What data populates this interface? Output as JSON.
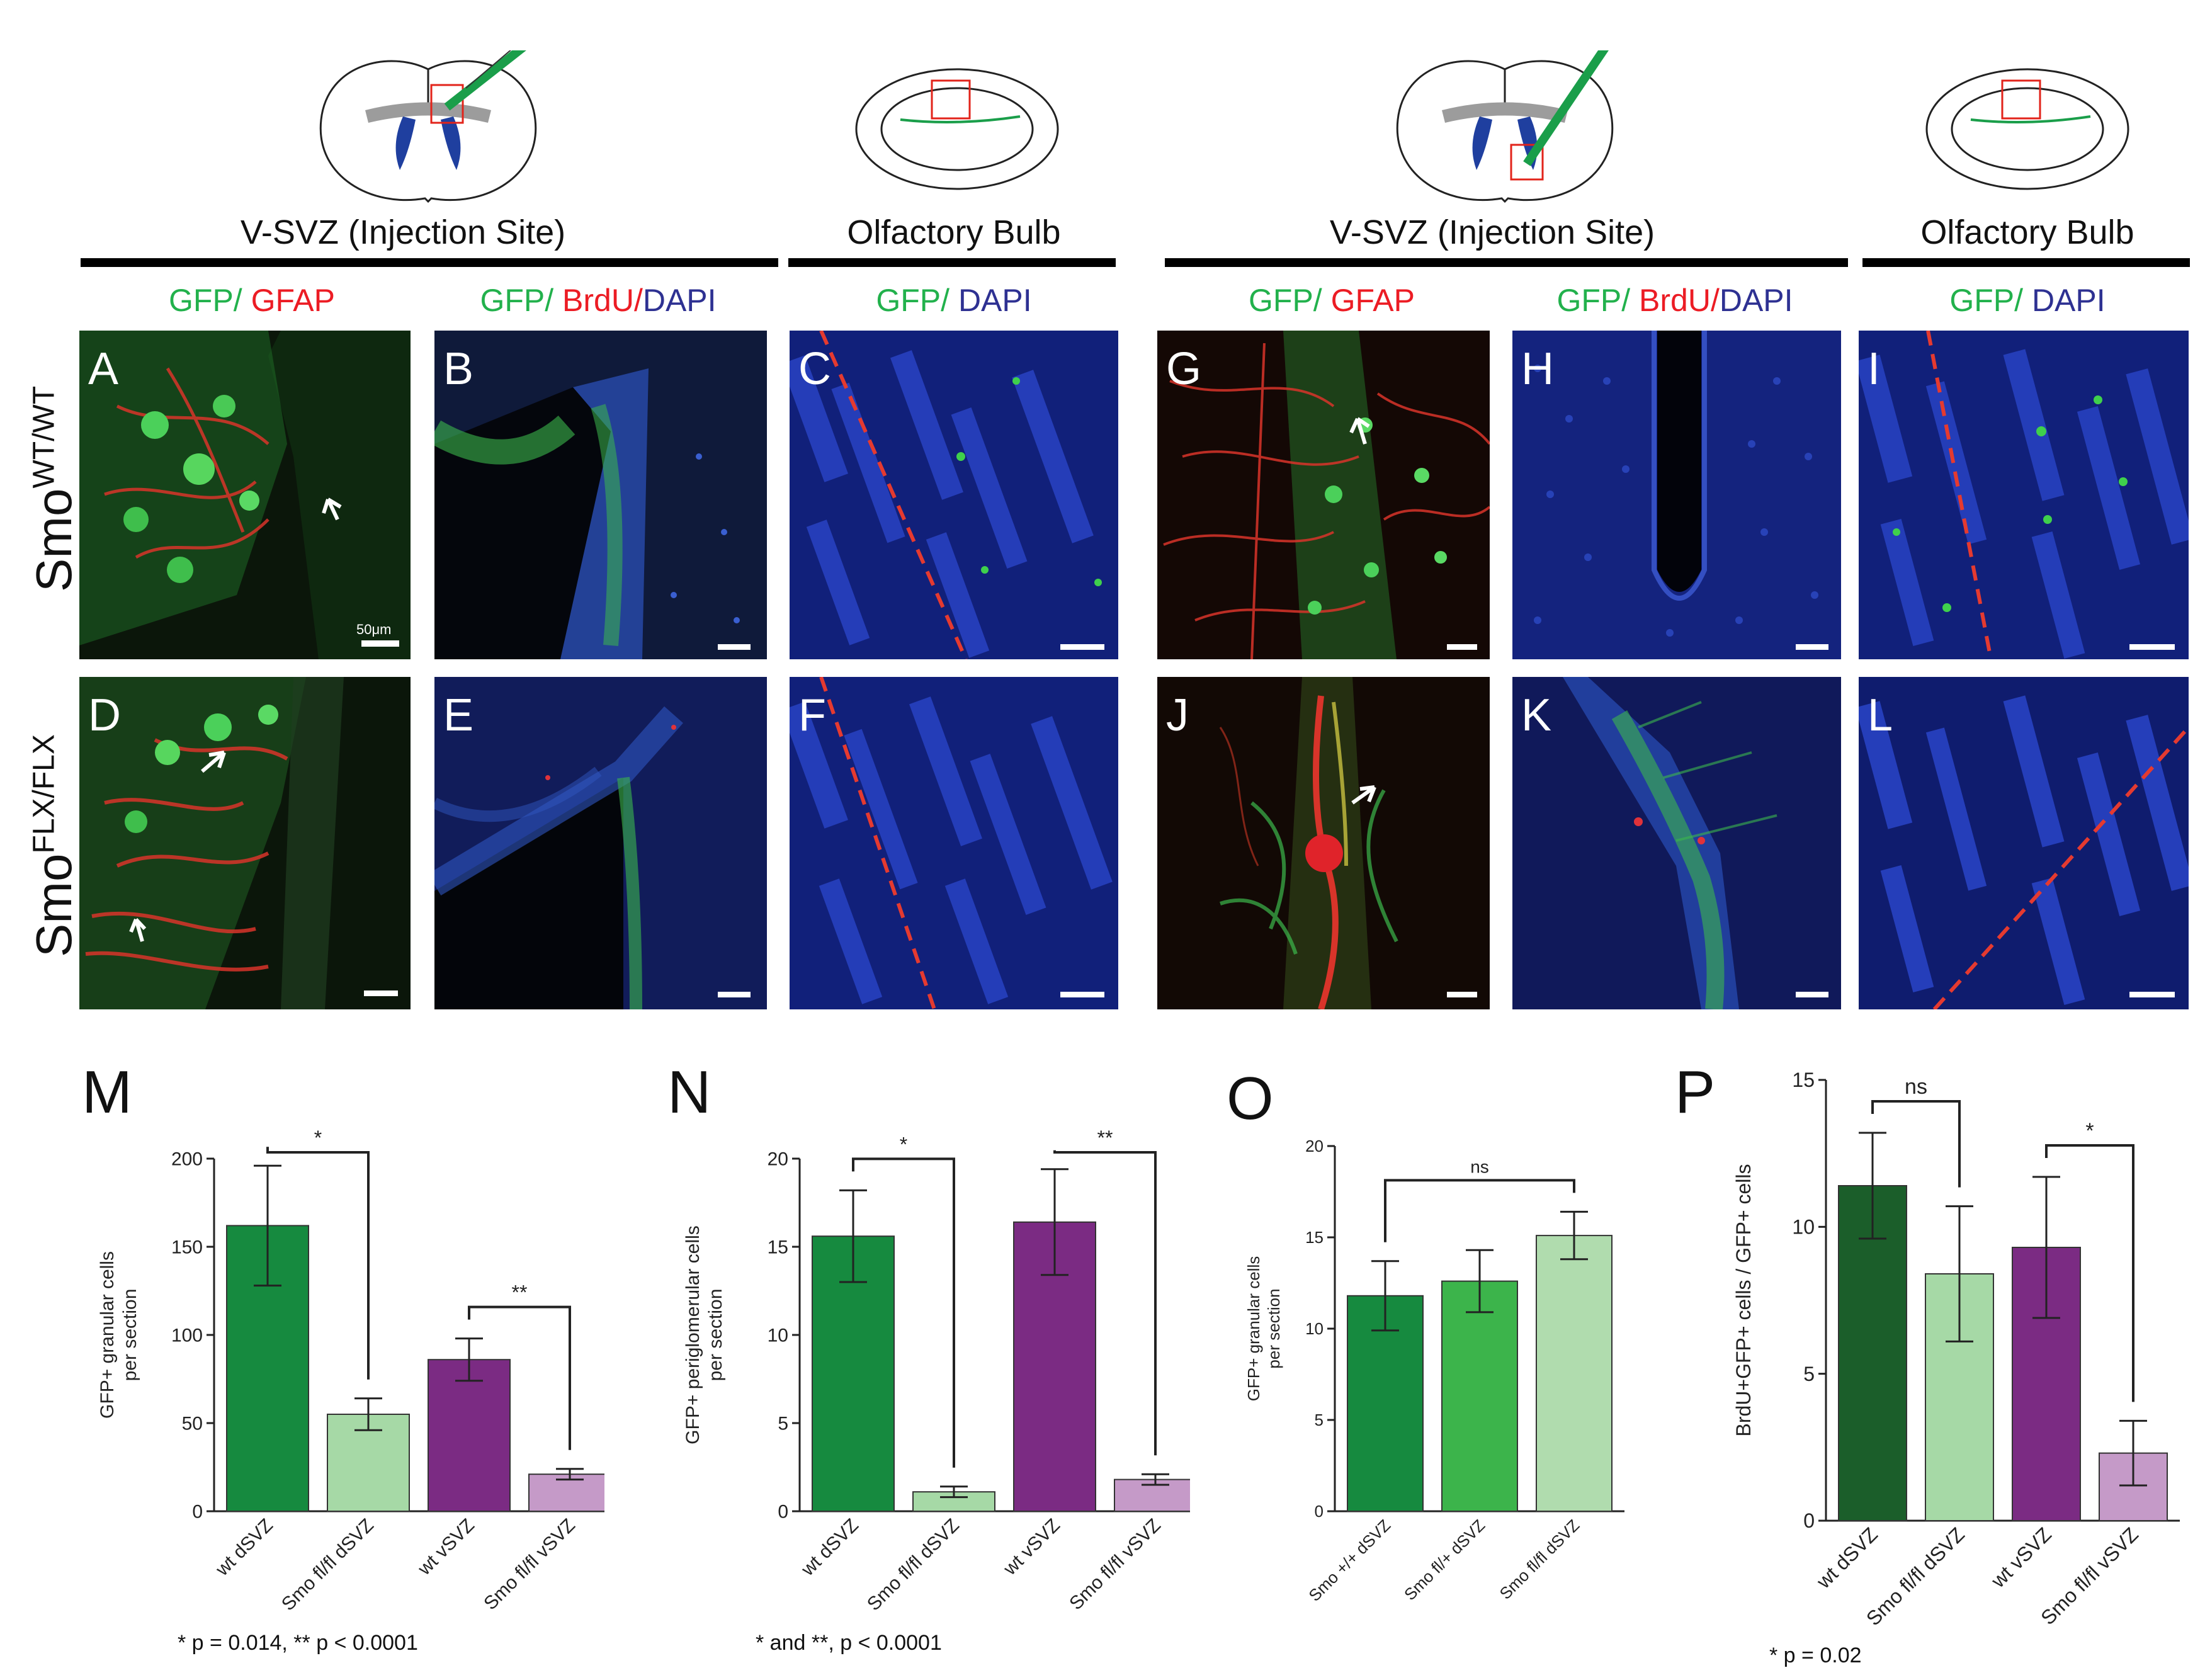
{
  "headers": {
    "left": {
      "vsvz": "V-SVZ (Injection Site)",
      "ob": "Olfactory Bulb"
    },
    "right": {
      "vsvz": "V-SVZ (Injection Site)",
      "ob": "Olfactory Bulb"
    }
  },
  "stains": {
    "gfp_gfap": {
      "gfp": "GFP/",
      "gfap": " GFAP"
    },
    "gfp_brdu_dapi": {
      "gfp": "GFP/",
      "brdu": " BrdU/",
      "dapi": "DAPI"
    },
    "gfp_dapi": {
      "gfp": "GFP/",
      "dapi": " DAPI"
    }
  },
  "rows": {
    "wt": {
      "base": "Smo",
      "sup": "WT/WT"
    },
    "flx": {
      "base": "Smo",
      "sup": "FLX/FLX"
    }
  },
  "panels": {
    "A": "A",
    "B": "B",
    "C": "C",
    "D": "D",
    "E": "E",
    "F": "F",
    "G": "G",
    "H": "H",
    "I": "I",
    "J": "J",
    "K": "K",
    "L": "L"
  },
  "scale_label": "50μm",
  "charts": {
    "M": {
      "letter": "M",
      "chart_data": {
        "type": "bar",
        "categories": [
          "wt dSVZ",
          "Smo fl/fl dSVZ",
          "wt vSVZ",
          "Smo fl/fl vSVZ"
        ],
        "values": [
          162,
          55,
          86,
          21
        ],
        "errors": [
          34,
          9,
          12,
          3
        ],
        "colors": [
          "#168a3f",
          "#a6d9a6",
          "#7b2b83",
          "#c59ac8"
        ],
        "ylabel_lines": [
          "GFP+ granular cells",
          "per section"
        ],
        "ylim": [
          0,
          200
        ],
        "yticks": [
          0,
          50,
          100,
          150,
          200
        ],
        "significance": [
          {
            "from": 0,
            "to": 1,
            "label": "*"
          },
          {
            "from": 2,
            "to": 3,
            "label": "**"
          }
        ]
      },
      "note": "* p = 0.014, ** p < 0.0001"
    },
    "N": {
      "letter": "N",
      "chart_data": {
        "type": "bar",
        "categories": [
          "wt dSVZ",
          "Smo fl/fl dSVZ",
          "wt vSVZ",
          "Smo fl/fl vSVZ"
        ],
        "values": [
          15.6,
          1.1,
          16.4,
          1.8
        ],
        "errors": [
          2.6,
          0.3,
          3.0,
          0.3
        ],
        "colors": [
          "#168a3f",
          "#a6d9a6",
          "#7b2b83",
          "#c59ac8"
        ],
        "ylabel_lines": [
          "GFP+ periglomerular cells",
          "per section"
        ],
        "ylim": [
          0,
          20
        ],
        "yticks": [
          0,
          5,
          10,
          15,
          20
        ],
        "significance": [
          {
            "from": 0,
            "to": 1,
            "label": "*"
          },
          {
            "from": 2,
            "to": 3,
            "label": "**"
          }
        ]
      },
      "note": "* and **, p < 0.0001"
    },
    "O": {
      "letter": "O",
      "chart_data": {
        "type": "bar",
        "categories": [
          "Smo +/+ dSVZ",
          "Smo fl/+ dSVZ",
          "Smo fl/fl dSVZ"
        ],
        "values": [
          11.8,
          12.6,
          15.1
        ],
        "errors": [
          1.9,
          1.7,
          1.3
        ],
        "colors": [
          "#168a3f",
          "#3cb44b",
          "#b0dcae"
        ],
        "ylabel_lines": [
          "GFP+ granular cells",
          "per section"
        ],
        "ylim": [
          0,
          20
        ],
        "yticks": [
          0,
          5,
          10,
          15,
          20
        ],
        "significance": [
          {
            "from": 0,
            "to": 2,
            "label": "ns"
          }
        ]
      },
      "note": ""
    },
    "P": {
      "letter": "P",
      "chart_data": {
        "type": "bar",
        "categories": [
          "wt dSVZ",
          "Smo fl/fl dSVZ",
          "wt vSVZ",
          "Smo fl/fl vSVZ"
        ],
        "values": [
          11.4,
          8.4,
          9.3,
          2.3
        ],
        "errors": [
          1.8,
          2.3,
          2.4,
          1.1
        ],
        "colors": [
          "#1b5e2a",
          "#a6d9a6",
          "#7b2b83",
          "#c59ac8"
        ],
        "ylabel_lines": [
          "BrdU+GFP+ cells / GFP+ cells"
        ],
        "ylim": [
          0,
          15
        ],
        "yticks": [
          0,
          5,
          10,
          15
        ],
        "significance": [
          {
            "from": 0,
            "to": 1,
            "label": "ns"
          },
          {
            "from": 2,
            "to": 3,
            "label": "*"
          }
        ]
      },
      "note": "* p = 0.02"
    }
  }
}
